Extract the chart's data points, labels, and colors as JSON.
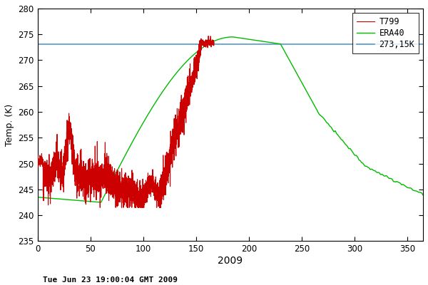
{
  "xlabel": "2009",
  "ylabel": "Temp. (K)",
  "xlim": [
    0,
    365
  ],
  "ylim": [
    235,
    280
  ],
  "yticks": [
    235,
    240,
    245,
    250,
    255,
    260,
    265,
    270,
    275,
    280
  ],
  "xticks": [
    0,
    50,
    100,
    150,
    200,
    250,
    300,
    350
  ],
  "freeze_line": 273.15,
  "legend_labels": [
    "T799",
    "ERA40",
    "273,15K"
  ],
  "t799_color": "#cc0000",
  "era40_color": "#00bb00",
  "freeze_color": "#5599cc",
  "bg_color": "#ffffff",
  "timestamp": "Tue Jun 23 19:00:04 GMT 2009",
  "era40_seed": 10,
  "t799_seed": 99
}
